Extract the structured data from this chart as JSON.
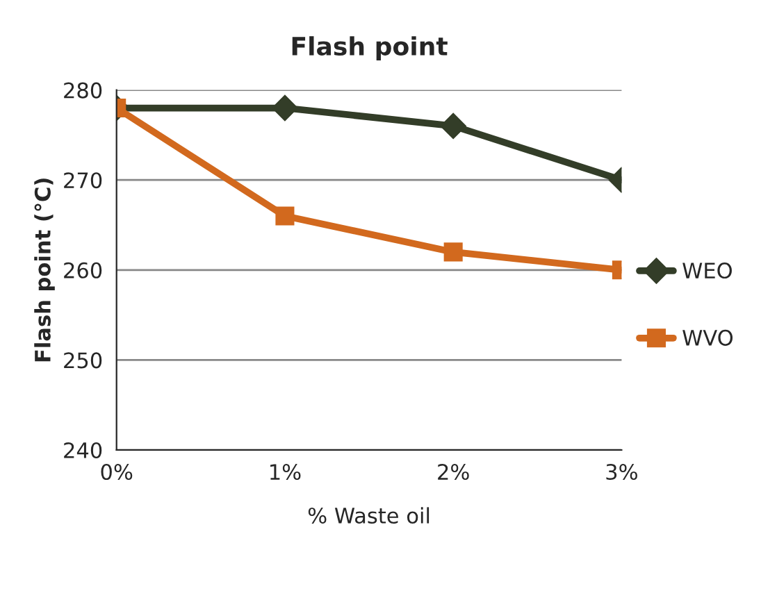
{
  "chart_data": {
    "type": "line",
    "title": "Flash point",
    "xlabel": "% Waste oil",
    "ylabel": "Flash point (°C)",
    "categories": [
      "0%",
      "1%",
      "2%",
      "3%"
    ],
    "series": [
      {
        "name": "WEO",
        "color": "#333d28",
        "values": [
          278,
          278,
          276,
          270
        ],
        "marker": "diamond"
      },
      {
        "name": "WVO",
        "color": "#d2691e",
        "values": [
          278,
          266,
          262,
          260
        ],
        "marker": "square"
      }
    ],
    "ylim": [
      240,
      280
    ],
    "yticks": [
      240,
      250,
      260,
      270,
      280
    ],
    "grid": "y",
    "legend": "right",
    "line_style": "solid"
  }
}
